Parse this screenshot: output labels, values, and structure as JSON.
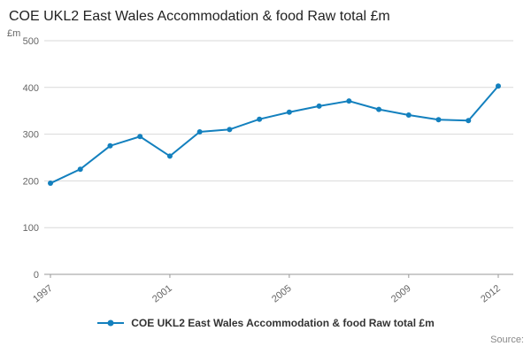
{
  "title": "COE UKL2 East Wales Accommodation & food Raw total £m",
  "y_unit_label": "£m",
  "legend": {
    "label": "COE UKL2 East Wales Accommodation & food Raw total £m"
  },
  "source_label": "Source:",
  "colors": {
    "line": "#1380be",
    "grid": "#d9d9d9",
    "axis": "#999999",
    "tick_text": "#666666"
  },
  "chart_data": {
    "type": "line",
    "title": "COE UKL2 East Wales Accommodation & food Raw total £m",
    "xlabel": "",
    "ylabel": "£m",
    "x": [
      1997,
      1998,
      1999,
      2000,
      2001,
      2002,
      2003,
      2004,
      2005,
      2006,
      2007,
      2008,
      2009,
      2010,
      2011,
      2012
    ],
    "series": [
      {
        "name": "COE UKL2 East Wales Accommodation & food Raw total £m",
        "values": [
          195,
          225,
          275,
          295,
          253,
          305,
          310,
          332,
          347,
          360,
          371,
          353,
          341,
          331,
          329,
          403
        ]
      }
    ],
    "ylim": [
      0,
      500
    ],
    "y_ticks": [
      0,
      100,
      200,
      300,
      400,
      500
    ],
    "x_ticks": [
      1997,
      2001,
      2005,
      2009,
      2012
    ],
    "grid": true,
    "legend_position": "bottom"
  }
}
